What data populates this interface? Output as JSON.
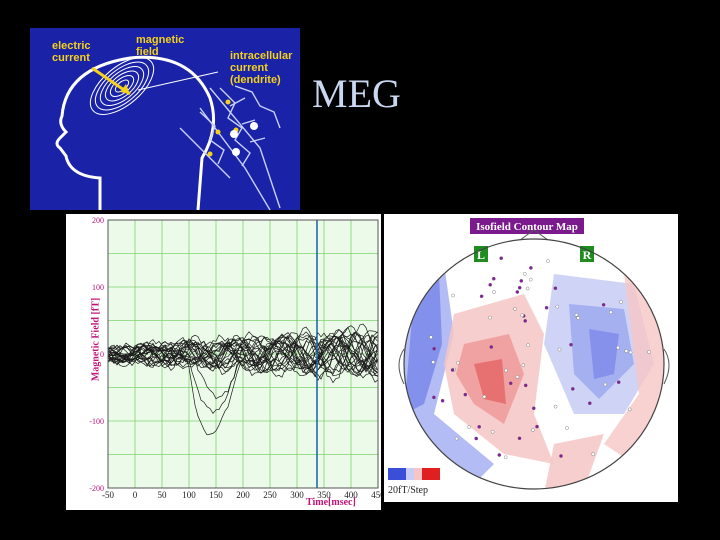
{
  "slide": {
    "title": "MEG"
  },
  "diagram": {
    "labels": {
      "electric_current": [
        "electric",
        "current"
      ],
      "magnetic_field": [
        "magnetic",
        "field"
      ],
      "intracellular_current": [
        "intracellular",
        "current",
        "(dendrite)"
      ]
    },
    "colors": {
      "background": "#1a22a8",
      "label": "#f4d21a"
    }
  },
  "waveform_plot": {
    "ylabel": "Magnetic Field [fT]",
    "xlabel": "Time[msec]",
    "x_ticks": [
      "-50",
      "0",
      "50",
      "100",
      "150",
      "200",
      "250",
      "300",
      "350",
      "400",
      "450"
    ],
    "y_ticks": [
      "200",
      "100",
      "0",
      "-100",
      "-200"
    ],
    "colors": {
      "background": "#ecfbe9",
      "grid": "#7ed36e",
      "axis_label": "#c0147a",
      "cursor": "#1a5fa8"
    }
  },
  "contour_map": {
    "title": "Isofield Contour Map",
    "left_label": "L",
    "right_label": "R",
    "scale_label": "20fT/Step",
    "colors": {
      "title_bg": "#7a1a8c",
      "lr_bg": "#1e8c1e",
      "positive": "#e85a5a",
      "negative": "#5a6ae8"
    }
  }
}
